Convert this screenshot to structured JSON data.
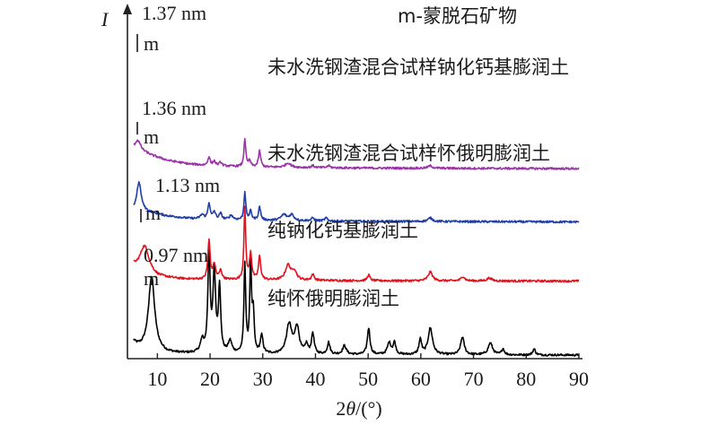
{
  "chart_data": {
    "type": "line",
    "xlabel": "2θ/(°)",
    "ylabel": "I",
    "xlim": [
      5,
      90
    ],
    "x_ticks": [
      10,
      20,
      30,
      40,
      50,
      60,
      70,
      80,
      90
    ],
    "legend_title": "m-蒙脱石矿物",
    "peak_marker": "m",
    "series": [
      {
        "name": "纯怀俄明膨润土",
        "color": "#000000",
        "d_spacing": "0.97 nm",
        "baseline": 0,
        "background": [
          [
            5,
            0.55
          ],
          [
            6,
            0.32
          ],
          [
            7,
            0.22
          ],
          [
            8,
            0.18
          ],
          [
            12,
            0.06
          ],
          [
            18,
            0.04
          ],
          [
            30,
            0.02
          ],
          [
            50,
            0.01
          ],
          [
            90,
            0
          ]
        ],
        "peaks": [
          [
            8.9,
            2.5,
            0.7
          ],
          [
            18.5,
            0.4,
            0.4
          ],
          [
            19.8,
            3.4,
            0.25
          ],
          [
            20.8,
            2.7,
            0.3
          ],
          [
            21.8,
            2.2,
            0.25
          ],
          [
            23.8,
            0.4,
            0.4
          ],
          [
            26.6,
            3.0,
            0.2
          ],
          [
            27.7,
            3.1,
            0.2
          ],
          [
            28.2,
            1.3,
            0.2
          ],
          [
            29.8,
            0.6,
            0.3
          ],
          [
            35.0,
            1.0,
            0.6
          ],
          [
            36.5,
            0.9,
            0.5
          ],
          [
            38.3,
            0.3,
            0.3
          ],
          [
            39.5,
            0.7,
            0.3
          ],
          [
            42.5,
            0.4,
            0.3
          ],
          [
            45.5,
            0.3,
            0.4
          ],
          [
            50.1,
            0.9,
            0.3
          ],
          [
            54.0,
            0.4,
            0.4
          ],
          [
            55.0,
            0.4,
            0.3
          ],
          [
            59.9,
            0.5,
            0.3
          ],
          [
            61.8,
            0.9,
            0.5
          ],
          [
            67.9,
            0.6,
            0.4
          ],
          [
            73.2,
            0.4,
            0.5
          ],
          [
            75.6,
            0.2,
            0.3
          ],
          [
            81.5,
            0.2,
            0.3
          ]
        ]
      },
      {
        "name": "纯钠化钙基膨润土",
        "color": "#e0141e",
        "d_spacing": "1.13 nm",
        "baseline": 2.5,
        "background": [
          [
            5,
            0.55
          ],
          [
            6,
            0.45
          ],
          [
            7,
            0.4
          ],
          [
            8,
            0.3
          ],
          [
            10,
            0.15
          ],
          [
            14,
            0.08
          ],
          [
            18,
            0.05
          ],
          [
            30,
            0.03
          ],
          [
            50,
            0.01
          ],
          [
            90,
            0
          ]
        ],
        "peaks": [
          [
            7.6,
            0.85,
            1.0
          ],
          [
            19.8,
            1.3,
            0.25
          ],
          [
            20.8,
            0.5,
            0.3
          ],
          [
            22.0,
            0.3,
            0.3
          ],
          [
            26.6,
            2.4,
            0.2
          ],
          [
            27.7,
            0.9,
            0.25
          ],
          [
            29.4,
            0.8,
            0.25
          ],
          [
            34.8,
            0.5,
            0.6
          ],
          [
            36.0,
            0.3,
            0.5
          ],
          [
            39.5,
            0.2,
            0.3
          ],
          [
            50.1,
            0.2,
            0.3
          ],
          [
            61.8,
            0.3,
            0.5
          ],
          [
            68.0,
            0.15,
            0.4
          ],
          [
            73.0,
            0.1,
            0.5
          ]
        ]
      },
      {
        "name": "未水洗钢渣混合试样怀俄明膨润土",
        "color": "#1f3ea8",
        "d_spacing": "1.36 nm",
        "baseline": 4.5,
        "background": [
          [
            5,
            0.4
          ],
          [
            7,
            0.38
          ],
          [
            9,
            0.3
          ],
          [
            12,
            0.2
          ],
          [
            16,
            0.12
          ],
          [
            20,
            0.08
          ],
          [
            30,
            0.05
          ],
          [
            50,
            0.02
          ],
          [
            90,
            0
          ]
        ],
        "peaks": [
          [
            6.5,
            0.95,
            0.5
          ],
          [
            18.5,
            0.15,
            0.4
          ],
          [
            19.8,
            0.55,
            0.25
          ],
          [
            20.8,
            0.25,
            0.3
          ],
          [
            22.0,
            0.2,
            0.3
          ],
          [
            24.0,
            0.15,
            0.4
          ],
          [
            26.6,
            0.95,
            0.2
          ],
          [
            27.7,
            0.3,
            0.25
          ],
          [
            29.4,
            0.45,
            0.25
          ],
          [
            34.0,
            0.2,
            0.6
          ],
          [
            35.5,
            0.2,
            0.5
          ],
          [
            39.5,
            0.1,
            0.3
          ],
          [
            42.0,
            0.1,
            0.3
          ],
          [
            61.8,
            0.12,
            0.5
          ]
        ]
      },
      {
        "name": "未水洗钢渣混合试样钠化钙基膨润土",
        "color": "#9b34a8",
        "d_spacing": "1.37 nm",
        "baseline": 6.3,
        "background": [
          [
            5,
            0.7
          ],
          [
            6,
            0.68
          ],
          [
            7,
            0.6
          ],
          [
            9,
            0.45
          ],
          [
            12,
            0.28
          ],
          [
            16,
            0.16
          ],
          [
            20,
            0.1
          ],
          [
            30,
            0.05
          ],
          [
            50,
            0.02
          ],
          [
            90,
            0
          ]
        ],
        "peaks": [
          [
            6.3,
            0.3,
            0.6
          ],
          [
            19.8,
            0.3,
            0.25
          ],
          [
            20.8,
            0.15,
            0.3
          ],
          [
            22.0,
            0.12,
            0.3
          ],
          [
            26.6,
            0.95,
            0.2
          ],
          [
            27.5,
            0.2,
            0.25
          ],
          [
            29.4,
            0.55,
            0.25
          ],
          [
            34.8,
            0.15,
            0.6
          ],
          [
            39.5,
            0.07,
            0.3
          ],
          [
            42.5,
            0.07,
            0.3
          ],
          [
            61.8,
            0.08,
            0.5
          ]
        ]
      }
    ]
  }
}
